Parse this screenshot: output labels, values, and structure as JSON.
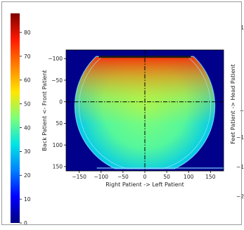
{
  "colorbar": {
    "ticks": [
      0,
      10,
      20,
      30,
      40,
      50,
      60,
      70,
      80
    ],
    "range": [
      0,
      88
    ],
    "colors": [
      "#000080",
      "#0000ff",
      "#0080ff",
      "#00e5e5",
      "#7dff7a",
      "#ffe600",
      "#ff8000",
      "#ff1a00",
      "#800000"
    ]
  },
  "chart_data": {
    "type": "heatmap",
    "xlabel": "Right Patient -> Left Patient",
    "ylabel": "Back Patient <- Front Patient",
    "x_ticks": [
      -150,
      -100,
      -50,
      0,
      50,
      100,
      150
    ],
    "y_ticks": [
      -100,
      -50,
      0,
      50,
      100,
      150
    ],
    "xlim": [
      -180,
      180
    ],
    "ylim": [
      160,
      -120
    ],
    "crosshair": {
      "x": 0,
      "y": 0
    },
    "background_value": 0,
    "phantom": {
      "shape": "circle with flat top and bottom",
      "center": [
        0,
        10
      ],
      "radius": 160,
      "flat_top_y": -105,
      "flat_bottom_y": 155,
      "edge_value": 30,
      "center_value": 45,
      "top_value": 80
    }
  },
  "side_panel": {
    "ylabel": "Feet Patient -> Head Patient",
    "tick_fragments": [
      "1",
      "-",
      "-1",
      "-1",
      "-2"
    ]
  }
}
